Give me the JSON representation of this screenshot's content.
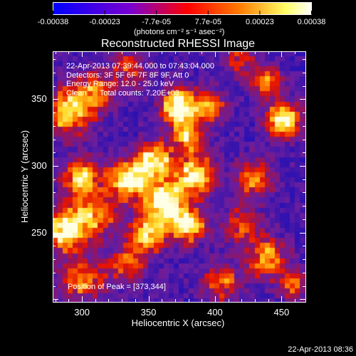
{
  "chart_data": {
    "type": "heatmap",
    "title": "Reconstructed RHESSI Image",
    "xlabel": "Heliocentric X (arcsec)",
    "ylabel": "Heliocentric Y (arcsec)",
    "xlim": [
      278,
      468
    ],
    "ylim": [
      198,
      386
    ],
    "x_ticks": [
      "300",
      "350",
      "400",
      "450"
    ],
    "y_ticks": [
      "250",
      "300",
      "350"
    ],
    "colorbar": {
      "ticks": [
        "-0.00038",
        "-0.00023",
        "-7.7e-05",
        "7.7e-05",
        "0.00023",
        "0.00038"
      ],
      "unit_label": "(photons cm⁻² s⁻¹ asec⁻²)",
      "range": [
        -0.00038,
        0.00038
      ],
      "colors": [
        "#0000ff",
        "#7a00d0",
        "#ff0000",
        "#ff7a00",
        "#ffff66",
        "#ffffff"
      ]
    },
    "annotations": [
      "22-Apr-2013 07:39:44.000 to 07:43:04.000",
      "Detectors: 3F 5F 6F 7F 8F 9F, Att 0",
      "Energy Range: 12.0 - 25.0 keV",
      "Clean      Total counts: 7.20E+03"
    ],
    "peak_label": "Position of Peak = [373,344]",
    "peak_position": [
      373,
      344
    ],
    "sources": [
      {
        "x": 362,
        "y": 272,
        "amp": 0.95,
        "sigma": 11
      },
      {
        "x": 335,
        "y": 290,
        "amp": 0.9,
        "sigma": 10
      },
      {
        "x": 355,
        "y": 304,
        "amp": 0.85,
        "sigma": 9
      },
      {
        "x": 385,
        "y": 293,
        "amp": 0.8,
        "sigma": 10
      },
      {
        "x": 380,
        "y": 255,
        "amp": 0.75,
        "sigma": 9
      },
      {
        "x": 350,
        "y": 248,
        "amp": 0.7,
        "sigma": 9
      },
      {
        "x": 310,
        "y": 262,
        "amp": 0.6,
        "sigma": 11
      },
      {
        "x": 288,
        "y": 252,
        "amp": 0.95,
        "sigma": 10
      },
      {
        "x": 300,
        "y": 290,
        "amp": 0.7,
        "sigma": 10
      },
      {
        "x": 290,
        "y": 340,
        "amp": 0.7,
        "sigma": 12
      },
      {
        "x": 310,
        "y": 355,
        "amp": 0.5,
        "sigma": 10
      },
      {
        "x": 300,
        "y": 215,
        "amp": 0.5,
        "sigma": 12
      },
      {
        "x": 335,
        "y": 226,
        "amp": 0.45,
        "sigma": 10
      },
      {
        "x": 373,
        "y": 344,
        "amp": 1.0,
        "sigma": 9
      },
      {
        "x": 380,
        "y": 322,
        "amp": 0.65,
        "sigma": 8
      },
      {
        "x": 396,
        "y": 344,
        "amp": 0.6,
        "sigma": 8
      },
      {
        "x": 452,
        "y": 334,
        "amp": 0.85,
        "sigma": 9
      },
      {
        "x": 440,
        "y": 362,
        "amp": 0.55,
        "sigma": 8
      },
      {
        "x": 430,
        "y": 290,
        "amp": 0.5,
        "sigma": 10
      },
      {
        "x": 420,
        "y": 255,
        "amp": 0.45,
        "sigma": 10
      },
      {
        "x": 440,
        "y": 230,
        "amp": 0.6,
        "sigma": 10
      },
      {
        "x": 405,
        "y": 212,
        "amp": 0.45,
        "sigma": 10
      },
      {
        "x": 460,
        "y": 210,
        "amp": 0.45,
        "sigma": 8
      },
      {
        "x": 335,
        "y": 372,
        "amp": 0.4,
        "sigma": 9
      },
      {
        "x": 420,
        "y": 380,
        "amp": 0.35,
        "sigma": 9
      }
    ]
  },
  "timestamp": "22-Apr-2013 08:36"
}
